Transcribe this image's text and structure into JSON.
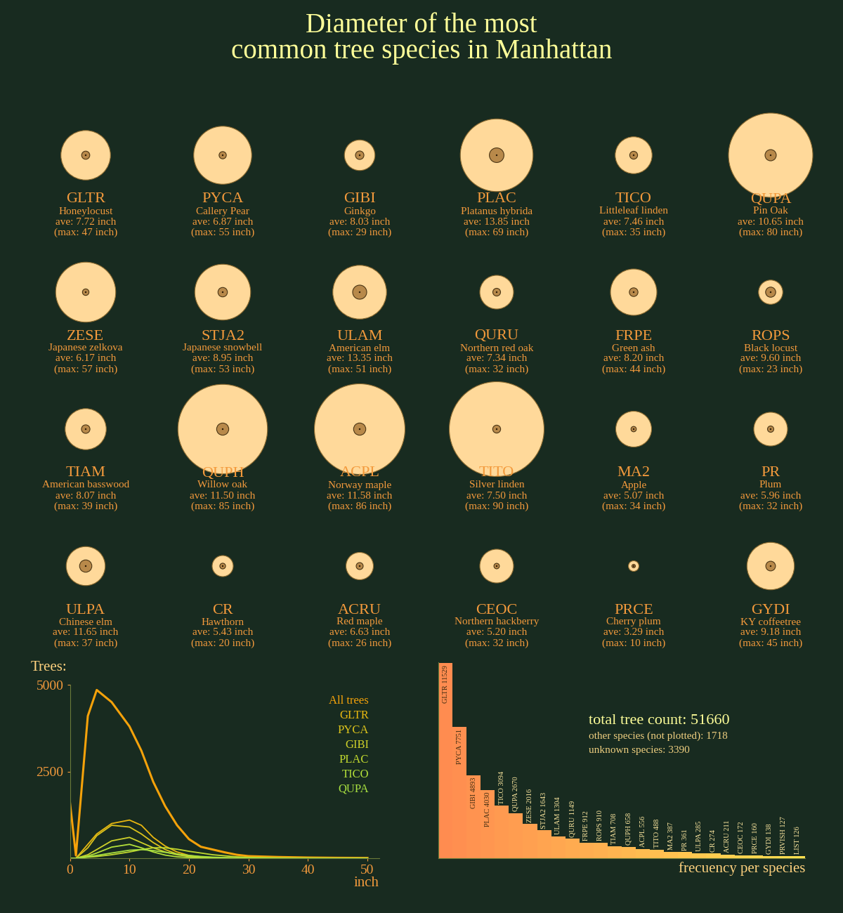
{
  "title": "Diameter of the most\ncommon tree species in Manhattan",
  "species": [
    {
      "code": "GLTR",
      "name": "Honeylocust",
      "ave": 7.72,
      "max": 47,
      "ave_label": "ave: 7.72 inch",
      "max_label": "(max: 47 inch)"
    },
    {
      "code": "PYCA",
      "name": "Callery Pear",
      "ave": 6.87,
      "max": 55,
      "ave_label": "ave: 6.87 inch",
      "max_label": "(max: 55 inch)"
    },
    {
      "code": "GIBI",
      "name": "Ginkgo",
      "ave": 8.03,
      "max": 29,
      "ave_label": "ave: 8.03 inch",
      "max_label": "(max: 29 inch)"
    },
    {
      "code": "PLAC",
      "name": "Platanus hybrida",
      "ave": 13.85,
      "max": 69,
      "ave_label": "ave: 13.85 inch",
      "max_label": "(max: 69 inch)"
    },
    {
      "code": "TICO",
      "name": "Littleleaf linden",
      "ave": 7.46,
      "max": 35,
      "ave_label": "ave: 7.46 inch",
      "max_label": "(max: 35 inch)"
    },
    {
      "code": "QUPA",
      "name": "Pin Oak",
      "ave": 10.65,
      "max": 80,
      "ave_label": "ave: 10.65 inch",
      "max_label": "(max: 80 inch)"
    },
    {
      "code": "ZESE",
      "name": "Japanese zelkova",
      "ave": 6.17,
      "max": 57,
      "ave_label": "ave: 6.17 inch",
      "max_label": "(max: 57 inch)"
    },
    {
      "code": "STJA2",
      "name": "Japanese snowbell",
      "ave": 8.95,
      "max": 53,
      "ave_label": "ave: 8.95 inch",
      "max_label": "(max: 53 inch)"
    },
    {
      "code": "ULAM",
      "name": "American elm",
      "ave": 13.35,
      "max": 51,
      "ave_label": "ave: 13.35 inch",
      "max_label": "(max: 51 inch)"
    },
    {
      "code": "QURU",
      "name": "Northern red oak",
      "ave": 7.34,
      "max": 32,
      "ave_label": "ave: 7.34 inch",
      "max_label": "(max: 32 inch)"
    },
    {
      "code": "FRPE",
      "name": "Green ash",
      "ave": 8.2,
      "max": 44,
      "ave_label": "ave: 8.20 inch",
      "max_label": "(max: 44 inch)"
    },
    {
      "code": "ROPS",
      "name": "Black locust",
      "ave": 9.6,
      "max": 23,
      "ave_label": "ave: 9.60 inch",
      "max_label": "(max: 23 inch)"
    },
    {
      "code": "TIAM",
      "name": "American basswood",
      "ave": 8.07,
      "max": 39,
      "ave_label": "ave: 8.07 inch",
      "max_label": "(max: 39 inch)"
    },
    {
      "code": "QUPH",
      "name": "Willow oak",
      "ave": 11.5,
      "max": 85,
      "ave_label": "ave: 11.50 inch",
      "max_label": "(max: 85 inch)"
    },
    {
      "code": "ACPL",
      "name": "Norway maple",
      "ave": 11.58,
      "max": 86,
      "ave_label": "ave: 11.58 inch",
      "max_label": "(max: 86 inch)"
    },
    {
      "code": "TITO",
      "name": "Silver linden",
      "ave": 7.5,
      "max": 90,
      "ave_label": "ave: 7.50 inch",
      "max_label": "(max: 90 inch)"
    },
    {
      "code": "MA2",
      "name": "Apple",
      "ave": 5.07,
      "max": 34,
      "ave_label": "ave: 5.07 inch",
      "max_label": "(max: 34 inch)"
    },
    {
      "code": "PR",
      "name": "Plum",
      "ave": 5.96,
      "max": 32,
      "ave_label": "ave: 5.96 inch",
      "max_label": "(max: 32 inch)"
    },
    {
      "code": "ULPA",
      "name": "Chinese elm",
      "ave": 11.65,
      "max": 37,
      "ave_label": "ave: 11.65 inch",
      "max_label": "(max: 37 inch)"
    },
    {
      "code": "CR",
      "name": "Hawthorn",
      "ave": 5.43,
      "max": 20,
      "ave_label": "ave: 5.43 inch",
      "max_label": "(max: 20 inch)"
    },
    {
      "code": "ACRU",
      "name": "Red maple",
      "ave": 6.63,
      "max": 26,
      "ave_label": "ave: 6.63 inch",
      "max_label": "(max: 26 inch)"
    },
    {
      "code": "CEOC",
      "name": "Northern hackberry",
      "ave": 5.2,
      "max": 32,
      "ave_label": "ave: 5.20 inch",
      "max_label": "(max: 32 inch)"
    },
    {
      "code": "PRCE",
      "name": "Cherry plum",
      "ave": 3.29,
      "max": 10,
      "ave_label": "ave: 3.29 inch",
      "max_label": "(max: 10 inch)"
    },
    {
      "code": "GYDI",
      "name": "KY coffeetree",
      "ave": 9.18,
      "max": 45,
      "ave_label": "ave: 9.18 inch",
      "max_label": "(max: 45 inch)"
    }
  ],
  "chart_data": [
    {
      "type": "line",
      "ylabel": "Trees:",
      "xlabel": "inch",
      "x": [
        0,
        1,
        3,
        4.5,
        7,
        10,
        12,
        14,
        16,
        18,
        20,
        22,
        24,
        26,
        28,
        30,
        35,
        40,
        45,
        50
      ],
      "series": [
        {
          "name": "All trees",
          "color": "#f5a20a",
          "values": [
            1600,
            80,
            4100,
            4850,
            4500,
            3800,
            3100,
            2200,
            1500,
            950,
            550,
            330,
            250,
            170,
            100,
            60,
            35,
            20,
            12,
            8
          ]
        },
        {
          "name": "GLTR",
          "color": "#e8b710",
          "values": [
            0,
            0,
            400,
            700,
            1000,
            1100,
            950,
            600,
            350,
            180,
            80,
            40,
            20,
            10,
            5,
            3,
            2,
            1,
            1,
            0
          ]
        },
        {
          "name": "PYCA",
          "color": "#dcc31c",
          "values": [
            0,
            0,
            300,
            650,
            950,
            900,
            700,
            450,
            250,
            120,
            60,
            30,
            15,
            8,
            5,
            3,
            2,
            1,
            0,
            0
          ]
        },
        {
          "name": "GIBI",
          "color": "#cfd12a",
          "values": [
            0,
            0,
            100,
            250,
            500,
            600,
            450,
            300,
            180,
            100,
            50,
            25,
            12,
            6,
            3,
            2,
            1,
            0,
            0,
            0
          ]
        },
        {
          "name": "PLAC",
          "color": "#c0d82f",
          "values": [
            0,
            0,
            30,
            50,
            100,
            180,
            250,
            300,
            300,
            260,
            200,
            150,
            100,
            70,
            40,
            25,
            10,
            5,
            2,
            1
          ]
        },
        {
          "name": "TICO",
          "color": "#b4e03a",
          "values": [
            0,
            0,
            60,
            150,
            320,
            400,
            300,
            180,
            90,
            40,
            20,
            10,
            5,
            2,
            1,
            0,
            0,
            0,
            0,
            0
          ]
        },
        {
          "name": "QUPA",
          "color": "#a8e040",
          "values": [
            0,
            0,
            40,
            80,
            150,
            230,
            250,
            220,
            170,
            120,
            80,
            50,
            30,
            18,
            10,
            6,
            3,
            1,
            0,
            0
          ]
        }
      ],
      "xlim": [
        0,
        52
      ],
      "xticks": [
        0,
        10,
        20,
        30,
        40,
        50
      ],
      "ylim": [
        0,
        5000
      ],
      "yticks": [
        2500,
        5000
      ],
      "legend": "upper right"
    },
    {
      "type": "bar",
      "xlabel": "frecuency per species",
      "categories": [
        "GLTR",
        "PYCA",
        "GIBI",
        "PLAC",
        "TICO",
        "QUPA",
        "ZESE",
        "STJA2",
        "ULAM",
        "QURU",
        "FRPE",
        "ROPS",
        "TIAM",
        "QUPH",
        "ACPL",
        "TITO",
        "MA2",
        "PR",
        "ULPA",
        "CR",
        "ACRU",
        "CEOC",
        "PRCE",
        "GYDI",
        "PRVISH",
        "LIST"
      ],
      "values": [
        11529,
        7751,
        4893,
        4030,
        3094,
        2670,
        2016,
        1643,
        1304,
        1149,
        912,
        910,
        708,
        658,
        556,
        488,
        387,
        361,
        285,
        274,
        211,
        172,
        160,
        138,
        127,
        126
      ],
      "value_labels": [
        "GLTR 11529",
        "PYCA 7751",
        "GIBI 4893",
        "PLAC 4030",
        "TICO 3094",
        "QUPA 2670",
        "ZESE 2016",
        "STJA2 1643",
        "ULAM 1304",
        "QURU 1149",
        "FRPE 912",
        "ROPS 910",
        "TIAM 708",
        "QUPH 658",
        "ACPL 556",
        "TITO 488",
        "MA2 387",
        "PR 361",
        "ULPA 285",
        "CR 274",
        "ACRU 211",
        "CEOC 172",
        "PRCE 160",
        "GYDI 138",
        "PRVISH 127",
        "LIST 126"
      ],
      "data_labels": true,
      "colors": [
        "#ff8c50",
        "#ff8f50",
        "#ff9350",
        "#ff9650",
        "#ff9a50",
        "#ff9d50",
        "#ffa050",
        "#ffa450",
        "#ffa750",
        "#ffab50",
        "#ffae50",
        "#ffb150",
        "#ffb550",
        "#ffb850",
        "#ffbc50",
        "#ffbf50",
        "#ffc250",
        "#ffc650",
        "#ffc950",
        "#ffcd50",
        "#ffd050",
        "#ffd350",
        "#ffd750",
        "#ffda50",
        "#ffde50",
        "#ffe150"
      ],
      "ylim": [
        0,
        11600
      ],
      "tick_labels": false,
      "annotations": [
        "total tree count: 51660",
        "other species (not plotted): 1718",
        "unknown species: 3390"
      ]
    }
  ]
}
